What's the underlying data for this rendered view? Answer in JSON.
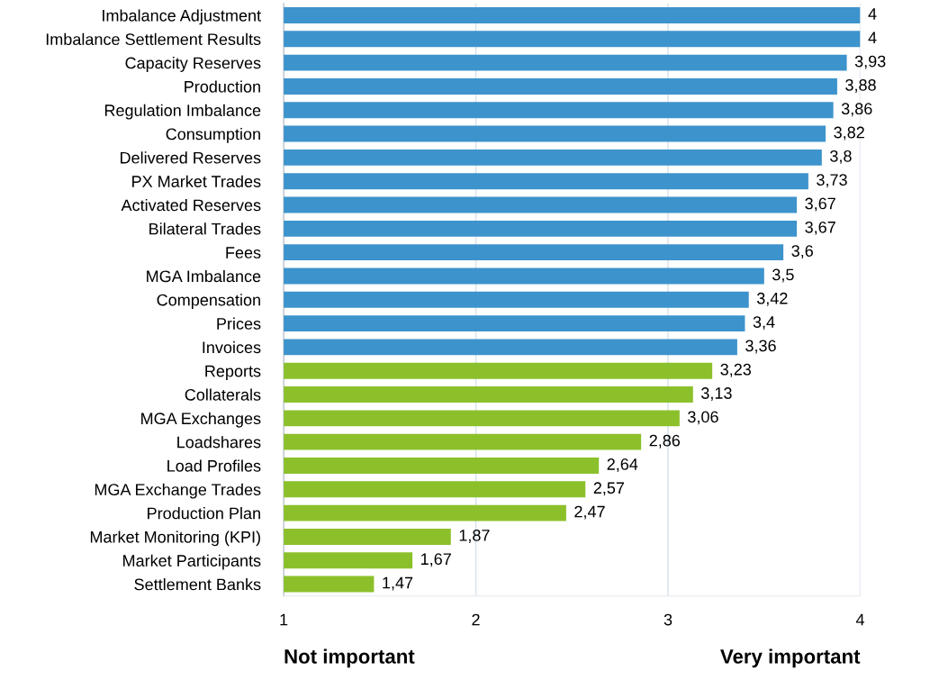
{
  "chart_data": {
    "type": "bar",
    "orientation": "horizontal",
    "categories": [
      "Imbalance Adjustment",
      "Imbalance Settlement Results",
      "Capacity Reserves",
      "Production",
      "Regulation Imbalance",
      "Consumption",
      "Delivered Reserves",
      "PX Market Trades",
      "Activated Reserves",
      "Bilateral Trades",
      "Fees",
      "MGA Imbalance",
      "Compensation",
      "Prices",
      "Invoices",
      "Reports",
      "Collaterals",
      "MGA Exchanges",
      "Loadshares",
      "Load Profiles",
      "MGA Exchange Trades",
      "Production Plan",
      "Market Monitoring (KPI)",
      "Market Participants",
      "Settlement Banks"
    ],
    "values": [
      4,
      4,
      3.93,
      3.88,
      3.86,
      3.82,
      3.8,
      3.73,
      3.67,
      3.67,
      3.6,
      3.5,
      3.42,
      3.4,
      3.36,
      3.23,
      3.13,
      3.06,
      2.86,
      2.64,
      2.57,
      2.47,
      1.87,
      1.67,
      1.47
    ],
    "value_labels": [
      "4",
      "4",
      "3,93",
      "3,88",
      "3,86",
      "3,82",
      "3,8",
      "3,73",
      "3,67",
      "3,67",
      "3,6",
      "3,5",
      "3,42",
      "3,4",
      "3,36",
      "3,23",
      "3,13",
      "3,06",
      "2,86",
      "2,64",
      "2,57",
      "2,47",
      "1,87",
      "1,67",
      "1,47"
    ],
    "colors": [
      "#3d93cc",
      "#3d93cc",
      "#3d93cc",
      "#3d93cc",
      "#3d93cc",
      "#3d93cc",
      "#3d93cc",
      "#3d93cc",
      "#3d93cc",
      "#3d93cc",
      "#3d93cc",
      "#3d93cc",
      "#3d93cc",
      "#3d93cc",
      "#3d93cc",
      "#8cc02a",
      "#8cc02a",
      "#8cc02a",
      "#8cc02a",
      "#8cc02a",
      "#8cc02a",
      "#8cc02a",
      "#8cc02a",
      "#8cc02a",
      "#8cc02a"
    ],
    "xlim": [
      1,
      4
    ],
    "xticks": [
      1,
      2,
      3,
      4
    ],
    "grid": "x",
    "annotations": [
      "Not important",
      "Very important"
    ]
  }
}
